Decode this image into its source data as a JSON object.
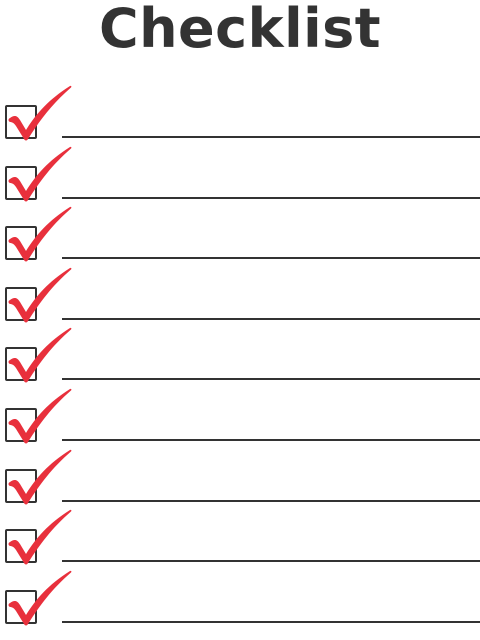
{
  "title": "Checklist",
  "colors": {
    "title": "#333333",
    "checkmark": "#e8303c",
    "line": "#333333",
    "checkbox_border": "#333333"
  },
  "icons": {
    "checkbox": "checkbox-icon",
    "check": "checkmark-icon"
  },
  "items": [
    {
      "checked": true,
      "text": ""
    },
    {
      "checked": true,
      "text": ""
    },
    {
      "checked": true,
      "text": ""
    },
    {
      "checked": true,
      "text": ""
    },
    {
      "checked": true,
      "text": ""
    },
    {
      "checked": true,
      "text": ""
    },
    {
      "checked": true,
      "text": ""
    },
    {
      "checked": true,
      "text": ""
    },
    {
      "checked": true,
      "text": ""
    }
  ]
}
